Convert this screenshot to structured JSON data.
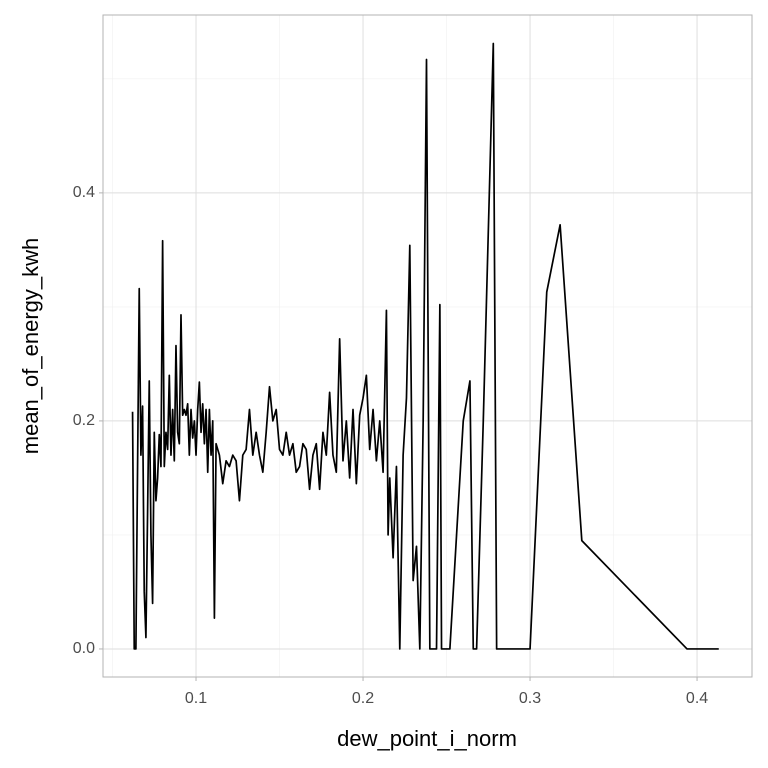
{
  "chart_data": {
    "type": "line",
    "x_label": "dew_point_i_norm",
    "y_label": "mean_of_energy_kwh",
    "color": "#000000",
    "grid": true,
    "x": [
      0.062,
      0.063,
      0.064,
      0.065,
      0.066,
      0.067,
      0.068,
      0.069,
      0.07,
      0.071,
      0.072,
      0.073,
      0.074,
      0.075,
      0.076,
      0.077,
      0.078,
      0.079,
      0.08,
      0.081,
      0.082,
      0.083,
      0.084,
      0.085,
      0.086,
      0.087,
      0.088,
      0.089,
      0.09,
      0.091,
      0.092,
      0.093,
      0.094,
      0.095,
      0.096,
      0.097,
      0.098,
      0.099,
      0.1,
      0.101,
      0.102,
      0.103,
      0.104,
      0.105,
      0.106,
      0.107,
      0.108,
      0.109,
      0.11,
      0.111,
      0.112,
      0.114,
      0.116,
      0.118,
      0.12,
      0.122,
      0.124,
      0.126,
      0.128,
      0.13,
      0.132,
      0.134,
      0.136,
      0.138,
      0.14,
      0.142,
      0.144,
      0.146,
      0.148,
      0.15,
      0.152,
      0.154,
      0.156,
      0.158,
      0.16,
      0.162,
      0.164,
      0.166,
      0.168,
      0.17,
      0.172,
      0.174,
      0.176,
      0.178,
      0.18,
      0.182,
      0.184,
      0.186,
      0.188,
      0.19,
      0.192,
      0.194,
      0.196,
      0.198,
      0.2,
      0.202,
      0.204,
      0.206,
      0.208,
      0.21,
      0.212,
      0.214,
      0.215,
      0.216,
      0.218,
      0.22,
      0.222,
      0.224,
      0.226,
      0.228,
      0.23,
      0.232,
      0.234,
      0.236,
      0.238,
      0.24,
      0.242,
      0.244,
      0.246,
      0.247,
      0.252,
      0.256,
      0.26,
      0.264,
      0.266,
      0.268,
      0.272,
      0.278,
      0.28,
      0.3,
      0.31,
      0.318,
      0.331,
      0.394,
      0.413
    ],
    "values": [
      0.208,
      0.0,
      0.0,
      0.16,
      0.316,
      0.17,
      0.213,
      0.05,
      0.01,
      0.12,
      0.235,
      0.1,
      0.04,
      0.19,
      0.13,
      0.15,
      0.188,
      0.16,
      0.358,
      0.16,
      0.19,
      0.175,
      0.24,
      0.17,
      0.21,
      0.165,
      0.266,
      0.19,
      0.18,
      0.293,
      0.205,
      0.21,
      0.205,
      0.215,
      0.17,
      0.21,
      0.185,
      0.2,
      0.17,
      0.21,
      0.234,
      0.19,
      0.215,
      0.18,
      0.21,
      0.155,
      0.21,
      0.17,
      0.2,
      0.027,
      0.18,
      0.17,
      0.145,
      0.165,
      0.16,
      0.17,
      0.165,
      0.13,
      0.17,
      0.175,
      0.21,
      0.17,
      0.19,
      0.17,
      0.155,
      0.19,
      0.23,
      0.2,
      0.21,
      0.175,
      0.17,
      0.19,
      0.17,
      0.18,
      0.155,
      0.16,
      0.18,
      0.175,
      0.14,
      0.17,
      0.18,
      0.14,
      0.19,
      0.17,
      0.225,
      0.17,
      0.155,
      0.272,
      0.165,
      0.2,
      0.15,
      0.21,
      0.145,
      0.205,
      0.22,
      0.24,
      0.175,
      0.21,
      0.165,
      0.2,
      0.155,
      0.297,
      0.1,
      0.15,
      0.08,
      0.16,
      0.0,
      0.17,
      0.22,
      0.354,
      0.06,
      0.09,
      0.0,
      0.2,
      0.517,
      0.0,
      0.0,
      0.0,
      0.302,
      0.0,
      0.0,
      0.1,
      0.2,
      0.235,
      0.0,
      0.0,
      0.2,
      0.531,
      0.0,
      0.0,
      0.313,
      0.372,
      0.095,
      0.0,
      0.0
    ],
    "xlim": [
      0.0443,
      0.4329
    ],
    "ylim": [
      -0.0246,
      0.556
    ],
    "xticks": [
      0.1,
      0.2,
      0.3,
      0.4
    ],
    "yticks": [
      {
        "value": 0,
        "label": "0.0"
      },
      0.2,
      0.4
    ]
  }
}
